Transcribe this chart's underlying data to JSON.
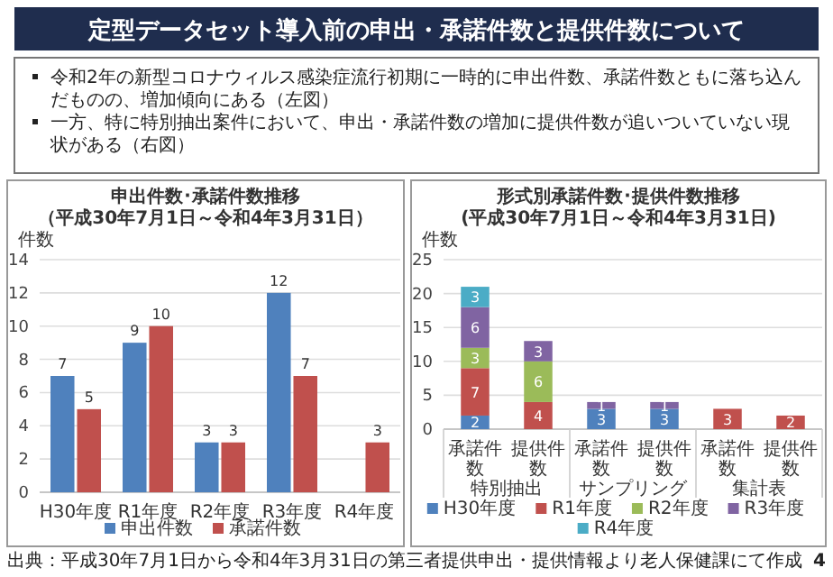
{
  "chart_data": [
    {
      "type": "other",
      "title": "定型データセット導入前の申出・承諾件数と提供件数について",
      "annotations": [
        "令和2年の新型コロナウィルス感染症流行初期に一時的に申出件数、承諾件数ともに落ち込んだものの、増加傾向にある（左図）",
        "一方、特に特別抽出案件において、申出・承諾件数の増加に提供件数が追いついていない現状がある（右図）",
        "出典：平成30年7月1日から令和4年3月31日の第三者提供申出・提供情報より老人保健課にて作成",
        "4"
      ]
    },
    {
      "type": "bar",
      "title": "申出件数･承諾件数推移",
      "subtitle": "（平成30年7月1日～令和4年3月31日）",
      "ylabel": "件数",
      "categories": [
        "H30年度",
        "R1年度",
        "R2年度",
        "R3年度",
        "R4年度"
      ],
      "ylim": [
        0,
        14
      ],
      "yticks": [
        0,
        2,
        4,
        6,
        8,
        10,
        12,
        14
      ],
      "grid": "y",
      "legend": "bottom",
      "data_labels": true,
      "series": [
        {
          "name": "申出件数",
          "color": "#4f81bd",
          "values": [
            7,
            9,
            3,
            12,
            null
          ]
        },
        {
          "name": "承諾件数",
          "color": "#c0504d",
          "values": [
            5,
            10,
            3,
            7,
            3
          ]
        }
      ]
    },
    {
      "type": "bar",
      "stacked": true,
      "title": "形式別承諾件数･提供件数推移",
      "subtitle": "(平成30年7月1日～令和4年3月31日)",
      "ylabel": "件数",
      "categories": [
        "承諾件数",
        "提供件数",
        "承諾件数",
        "提供件数",
        "承諾件数",
        "提供件数"
      ],
      "annotations": [
        "特別抽出",
        "サンプリング",
        "集計表"
      ],
      "ylim": [
        0,
        25
      ],
      "yticks": [
        0,
        5,
        10,
        15,
        20,
        25
      ],
      "grid": "y",
      "legend": "bottom",
      "data_labels": true,
      "series": [
        {
          "name": "H30年度",
          "color": "#4f81bd",
          "values": [
            2,
            null,
            3,
            3,
            null,
            null
          ]
        },
        {
          "name": "R1年度",
          "color": "#c0504d",
          "values": [
            7,
            4,
            null,
            null,
            3,
            2
          ]
        },
        {
          "name": "R2年度",
          "color": "#9bbb59",
          "values": [
            3,
            6,
            null,
            null,
            null,
            null
          ]
        },
        {
          "name": "R3年度",
          "color": "#8064a2",
          "values": [
            6,
            3,
            1,
            1,
            null,
            null
          ]
        },
        {
          "name": "R4年度",
          "color": "#4bacc6",
          "values": [
            3,
            null,
            null,
            null,
            null,
            null
          ]
        }
      ]
    }
  ]
}
